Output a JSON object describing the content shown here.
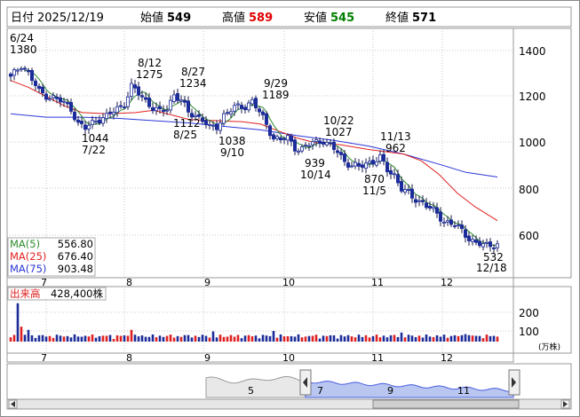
{
  "header": {
    "date_label": "日付",
    "date_value": "2025/12/19",
    "open_label": "始値",
    "open_value": "549",
    "high_label": "高値",
    "high_value": "589",
    "low_label": "安値",
    "low_value": "545",
    "close_label": "終値",
    "close_value": "571",
    "colors": {
      "high": "#e00000",
      "low": "#008000"
    }
  },
  "chart_data": [
    {
      "type": "candlestick",
      "title": "",
      "x_month_labels": [
        "7",
        "8",
        "9",
        "10",
        "11",
        "12"
      ],
      "y_ticks": [
        "1400",
        "1200",
        "1000",
        "800",
        "600"
      ],
      "ylim": [
        440,
        1490
      ],
      "legend": [
        {
          "name": "MA(5)",
          "value": "556.80",
          "color": "#2e8b2e"
        },
        {
          "name": "MA(25)",
          "value": "676.40",
          "color": "#e02020"
        },
        {
          "name": "MA(75)",
          "value": "903.48",
          "color": "#2a36d8"
        }
      ],
      "annotations": [
        {
          "date": "6/24",
          "value": "1380",
          "kind": "high"
        },
        {
          "date": "8/12",
          "value": "1275",
          "kind": "high"
        },
        {
          "date": "8/27",
          "value": "1234",
          "kind": "high"
        },
        {
          "date": "9/29",
          "value": "1189",
          "kind": "high"
        },
        {
          "date": "10/22",
          "value": "1027",
          "kind": "high"
        },
        {
          "date": "11/13",
          "value": "962",
          "kind": "high"
        },
        {
          "date": "7/22",
          "value": "1044",
          "kind": "low"
        },
        {
          "date": "8/25",
          "value": "1112",
          "kind": "low"
        },
        {
          "date": "9/10",
          "value": "1038",
          "kind": "low"
        },
        {
          "date": "10/14",
          "value": "939",
          "kind": "low"
        },
        {
          "date": "11/5",
          "value": "870",
          "kind": "low"
        },
        {
          "date": "12/18",
          "value": "532",
          "kind": "low"
        }
      ],
      "ma75_approx": [
        [
          0,
          1125
        ],
        [
          40,
          1110
        ],
        [
          80,
          1110
        ],
        [
          120,
          1105
        ],
        [
          160,
          1095
        ],
        [
          200,
          1085
        ],
        [
          240,
          1070
        ],
        [
          280,
          1055
        ],
        [
          320,
          1030
        ],
        [
          360,
          1010
        ],
        [
          400,
          985
        ],
        [
          440,
          950
        ],
        [
          480,
          905
        ],
        [
          510,
          870
        ],
        [
          545,
          850
        ]
      ],
      "ma25_approx": [
        [
          0,
          1270
        ],
        [
          20,
          1240
        ],
        [
          40,
          1200
        ],
        [
          60,
          1160
        ],
        [
          80,
          1130
        ],
        [
          110,
          1125
        ],
        [
          140,
          1130
        ],
        [
          160,
          1140
        ],
        [
          180,
          1120
        ],
        [
          200,
          1100
        ],
        [
          230,
          1095
        ],
        [
          260,
          1090
        ],
        [
          280,
          1080
        ],
        [
          300,
          1050
        ],
        [
          320,
          1020
        ],
        [
          340,
          1000
        ],
        [
          370,
          990
        ],
        [
          400,
          970
        ],
        [
          420,
          960
        ],
        [
          440,
          950
        ],
        [
          460,
          920
        ],
        [
          480,
          860
        ],
        [
          500,
          780
        ],
        [
          520,
          720
        ],
        [
          545,
          660
        ]
      ]
    },
    {
      "type": "bar",
      "title": "出来高",
      "value_label": "428,400株",
      "y_ticks": [
        "200",
        "100"
      ],
      "unit": "(万株)",
      "x_month_labels": [
        "7",
        "8",
        "9",
        "10",
        "11",
        "12"
      ]
    },
    {
      "type": "area",
      "title": "",
      "x_labels": [
        "5",
        "7",
        "9",
        "11"
      ]
    }
  ]
}
